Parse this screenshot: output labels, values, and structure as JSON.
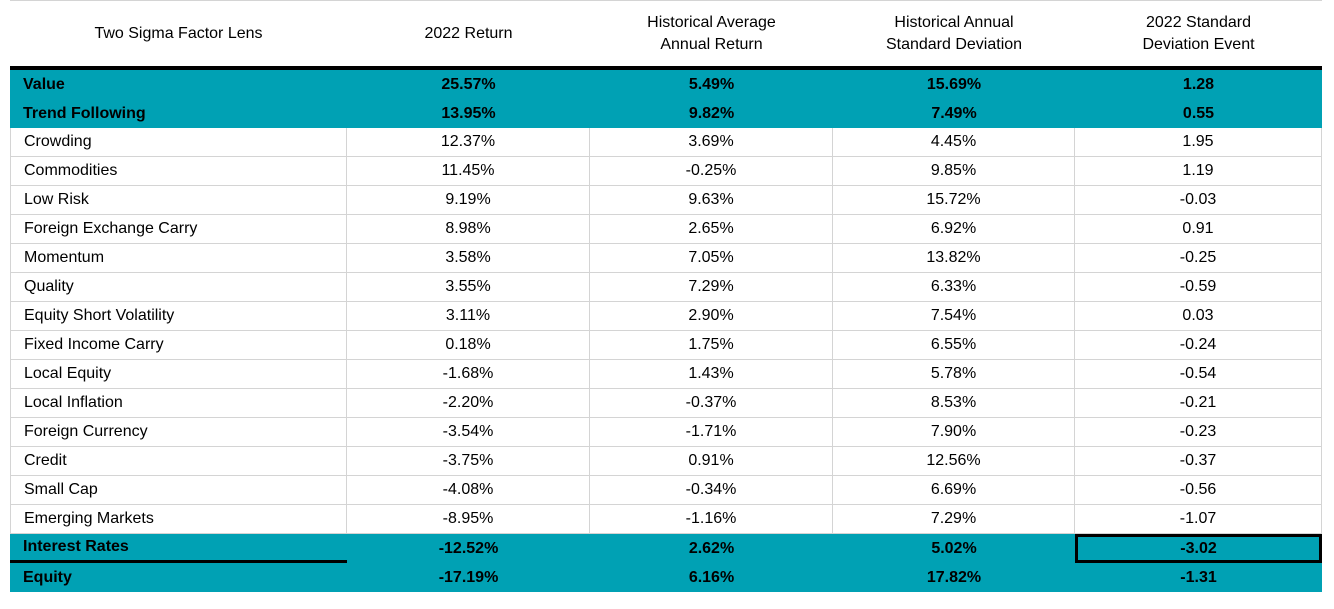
{
  "chart_data": {
    "type": "table",
    "columns": [
      "Two Sigma Factor Lens",
      "2022 Return",
      "Historical Average\nAnnual Return",
      "Historical Annual\nStandard Deviation",
      "2022 Standard\nDeviation Event"
    ],
    "rows": [
      {
        "cells": [
          "Value",
          "25.57%",
          "5.49%",
          "15.69%",
          "1.28"
        ],
        "highlight": true
      },
      {
        "cells": [
          "Trend Following",
          "13.95%",
          "9.82%",
          "7.49%",
          "0.55"
        ],
        "highlight": true
      },
      {
        "cells": [
          "Crowding",
          "12.37%",
          "3.69%",
          "4.45%",
          "1.95"
        ],
        "highlight": false
      },
      {
        "cells": [
          "Commodities",
          "11.45%",
          "-0.25%",
          "9.85%",
          "1.19"
        ],
        "highlight": false
      },
      {
        "cells": [
          "Low Risk",
          "9.19%",
          "9.63%",
          "15.72%",
          "-0.03"
        ],
        "highlight": false
      },
      {
        "cells": [
          "Foreign Exchange Carry",
          "8.98%",
          "2.65%",
          "6.92%",
          "0.91"
        ],
        "highlight": false
      },
      {
        "cells": [
          "Momentum",
          "3.58%",
          "7.05%",
          "13.82%",
          "-0.25"
        ],
        "highlight": false
      },
      {
        "cells": [
          "Quality",
          "3.55%",
          "7.29%",
          "6.33%",
          "-0.59"
        ],
        "highlight": false
      },
      {
        "cells": [
          "Equity Short Volatility",
          "3.11%",
          "2.90%",
          "7.54%",
          "0.03"
        ],
        "highlight": false
      },
      {
        "cells": [
          "Fixed Income Carry",
          "0.18%",
          "1.75%",
          "6.55%",
          "-0.24"
        ],
        "highlight": false
      },
      {
        "cells": [
          "Local Equity",
          "-1.68%",
          "1.43%",
          "5.78%",
          "-0.54"
        ],
        "highlight": false
      },
      {
        "cells": [
          "Local Inflation",
          "-2.20%",
          "-0.37%",
          "8.53%",
          "-0.21"
        ],
        "highlight": false
      },
      {
        "cells": [
          "Foreign Currency",
          "-3.54%",
          "-1.71%",
          "7.90%",
          "-0.23"
        ],
        "highlight": false
      },
      {
        "cells": [
          "Credit",
          "-3.75%",
          "0.91%",
          "12.56%",
          "-0.37"
        ],
        "highlight": false
      },
      {
        "cells": [
          "Small Cap",
          "-4.08%",
          "-0.34%",
          "6.69%",
          "-0.56"
        ],
        "highlight": false
      },
      {
        "cells": [
          "Emerging Markets",
          "-8.95%",
          "-1.16%",
          "7.29%",
          "-1.07"
        ],
        "highlight": false
      },
      {
        "cells": [
          "Interest Rates",
          "-12.52%",
          "2.62%",
          "5.02%",
          "-3.02"
        ],
        "highlight": true,
        "boxed_cell": 4,
        "label_divider": true
      },
      {
        "cells": [
          "Equity",
          "-17.19%",
          "6.16%",
          "17.82%",
          "-1.31"
        ],
        "highlight": true
      }
    ]
  },
  "colors": {
    "highlight_fill": "#00A1B4",
    "gridline": "#D4D4D4",
    "emphasis_border": "#000000",
    "text": "#000000"
  }
}
